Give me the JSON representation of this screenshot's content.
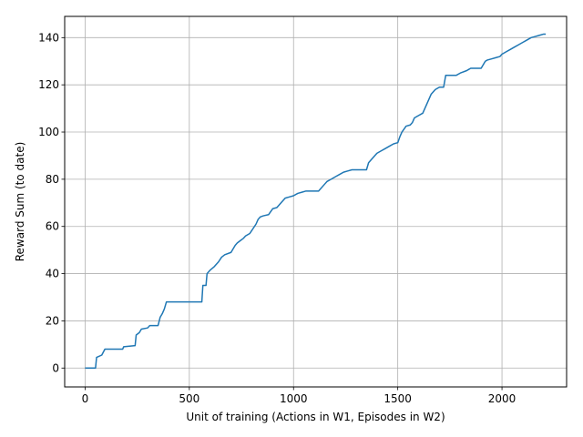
{
  "chart_data": {
    "type": "line",
    "title": "",
    "xlabel": "Unit of training (Actions in W1, Episodes in W2)",
    "ylabel": "Reward Sum (to date)",
    "xlim": [
      -98,
      2310
    ],
    "ylim": [
      -8,
      149
    ],
    "xticks": [
      0,
      500,
      1000,
      1500,
      2000
    ],
    "yticks": [
      0,
      20,
      40,
      60,
      80,
      100,
      120,
      140
    ],
    "grid": true,
    "legend": "none",
    "line_color": "#1f77b4",
    "series": [
      {
        "x": [
          0,
          50,
          55,
          80,
          95,
          180,
          185,
          240,
          245,
          260,
          270,
          300,
          310,
          350,
          360,
          370,
          380,
          390,
          400,
          560,
          565,
          580,
          585,
          600,
          620,
          640,
          655,
          670,
          700,
          720,
          730,
          745,
          760,
          770,
          790,
          820,
          830,
          840,
          855,
          880,
          900,
          920,
          940,
          960,
          980,
          1000,
          1020,
          1040,
          1060,
          1080,
          1120,
          1150,
          1160,
          1180,
          1200,
          1220,
          1240,
          1260,
          1280,
          1300,
          1320,
          1350,
          1360,
          1370,
          1380,
          1400,
          1420,
          1440,
          1460,
          1480,
          1500,
          1510,
          1520,
          1540,
          1560,
          1570,
          1580,
          1600,
          1620,
          1640,
          1660,
          1680,
          1700,
          1720,
          1730,
          1740,
          1760,
          1780,
          1800,
          1830,
          1840,
          1850,
          1860,
          1870,
          1880,
          1900,
          1920,
          1930,
          1950,
          1970,
          1990,
          2000,
          2020,
          2040,
          2060,
          2080,
          2100,
          2120,
          2140,
          2160,
          2180,
          2200,
          2210
        ],
        "y": [
          0,
          0,
          4.5,
          5.5,
          8,
          8,
          9,
          9.5,
          14,
          15,
          16.5,
          17,
          18,
          18,
          21.5,
          23,
          25,
          28,
          28,
          28,
          35,
          35,
          40,
          41.5,
          43,
          45,
          47,
          48,
          49,
          52,
          53,
          54,
          55,
          56,
          57,
          61,
          63,
          64,
          64.5,
          65,
          67.5,
          68,
          70,
          72,
          72.5,
          73,
          74,
          74.5,
          75,
          75,
          75,
          78,
          79,
          80,
          81,
          82,
          83,
          83.5,
          84,
          84,
          84,
          84,
          87,
          88,
          89,
          91,
          92,
          93,
          94,
          95,
          95.5,
          98,
          100,
          102.5,
          103,
          104,
          106,
          107,
          108,
          112,
          116,
          118,
          119,
          119,
          124,
          124,
          124,
          124,
          125,
          126,
          126.5,
          127,
          127,
          127,
          127,
          127,
          130,
          130.5,
          131,
          131.5,
          132,
          133,
          134,
          135,
          136,
          137,
          138,
          139,
          140,
          140.5,
          141,
          141.5,
          141.5
        ]
      }
    ]
  }
}
